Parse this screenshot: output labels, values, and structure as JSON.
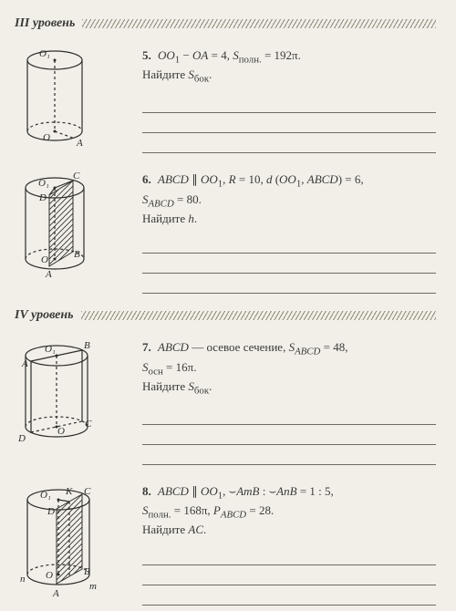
{
  "levels": {
    "l3": "III уровень",
    "l4": "IV уровень"
  },
  "problems": {
    "p5": {
      "num": "5.",
      "text_html": "<i>OO</i><sub>1</sub> − <i>OA</i> = 4, <i>S</i><sub>полн.</sub> = 192π.<br>Найдите <i>S</i><sub>бок</sub>.",
      "fig": {
        "O1": "O₁",
        "O": "O",
        "A": "A"
      }
    },
    "p6": {
      "num": "6.",
      "text_html": "<i>ABCD</i> ∥ <i>OO</i><sub>1</sub>, <i>R</i> = 10, <i>d</i> (<i>OO</i><sub>1</sub>, <i>ABCD</i>) = 6,<br><i>S</i><sub><i>ABCD</i></sub> = 80.<br>Найдите <i>h</i>.",
      "fig": {
        "O1": "O₁",
        "O": "O",
        "A": "A",
        "B": "B",
        "C": "C",
        "D": "D"
      }
    },
    "p7": {
      "num": "7.",
      "text_html": "<i>ABCD</i> — осевое сечение, <i>S</i><sub><i>ABCD</i></sub> = 48,<br><i>S</i><sub>осн</sub> = 16π.<br>Найдите <i>S</i><sub>бок</sub>.",
      "fig": {
        "O1": "O₁",
        "O": "O",
        "A": "A",
        "B": "B",
        "C": "C",
        "D": "D"
      }
    },
    "p8": {
      "num": "8.",
      "text_html": "<i>ABCD</i> ∥ <i>OO</i><sub>1</sub>, ⌣<i>AmB</i> : ⌣<i>AnB</i> = 1 : 5,<br><i>S</i><sub>полн.</sub> = 168π, <i>P</i><sub><i>ABCD</i></sub> = 28.<br>Найдите <i>AC</i>.",
      "fig": {
        "O1": "O₁",
        "O": "O",
        "A": "A",
        "B": "B",
        "C": "C",
        "D": "D",
        "K": "K",
        "m": "m",
        "n": "n"
      }
    }
  },
  "style": {
    "page_bg": "#f2efe8",
    "text_color": "#3a3a38",
    "line_color": "#6b6b60",
    "stroke": "#2d2d2a"
  }
}
